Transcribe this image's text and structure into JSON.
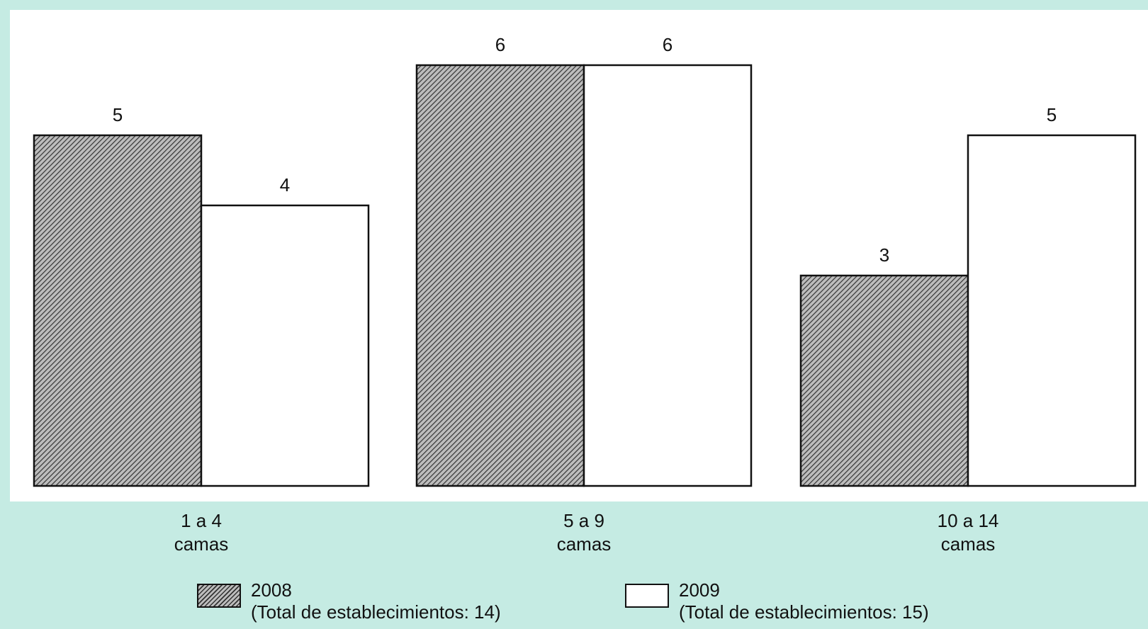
{
  "chart_data": {
    "type": "bar",
    "categories": [
      [
        "1 a 4",
        "camas"
      ],
      [
        "5 a 9",
        "camas"
      ],
      [
        "10 a 14",
        "camas"
      ]
    ],
    "series": [
      {
        "name": "2008",
        "values": [
          5,
          6,
          3
        ],
        "pattern": "hatched"
      },
      {
        "name": "2009",
        "values": [
          4,
          6,
          5
        ],
        "pattern": "white"
      }
    ],
    "ylim": [
      0,
      6
    ],
    "grid": false,
    "legend_position": "bottom",
    "data_labels": true
  },
  "legend": [
    {
      "label": "2008",
      "note": "(Total de establecimientos: 14)"
    },
    {
      "label": "2009",
      "note": "(Total de establecimientos: 15)"
    }
  ],
  "colors": {
    "background": "#c5ebe3",
    "plot_area": "#ffffff",
    "hatch_line": "#333333",
    "hatch_fill": "#bdbdbd",
    "outline": "#111111"
  }
}
